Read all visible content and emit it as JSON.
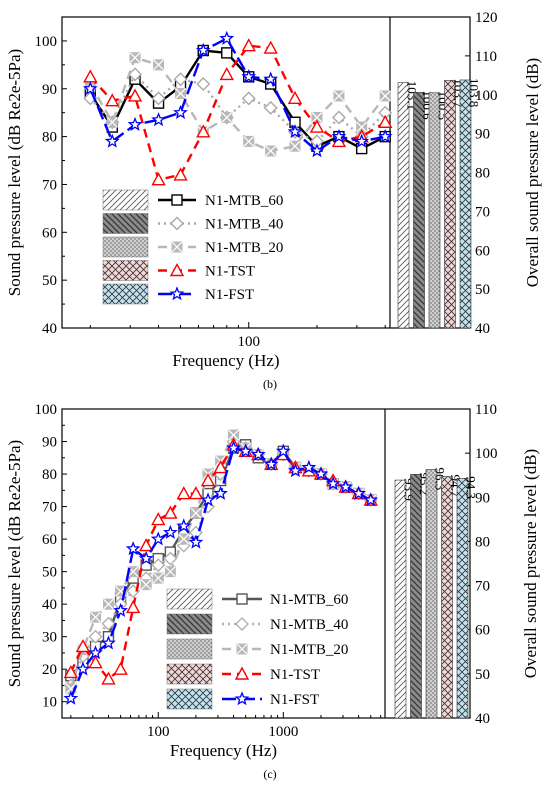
{
  "chart_data": [
    {
      "type": "line",
      "panel": "b",
      "caption": "(b)",
      "xlabel": "Frequency (Hz)",
      "ylabel": "Sound pressure level (dB Re2e-5Pa)",
      "y2label": "Overall sound pressure level (dB)",
      "xscale": "log",
      "xlim": [
        15,
        420
      ],
      "ylim": [
        40,
        105
      ],
      "y2lim": [
        40,
        120
      ],
      "x_ticks": [
        100
      ],
      "y_ticks": [
        40,
        50,
        60,
        70,
        80,
        90,
        100
      ],
      "y2_ticks": [
        40,
        50,
        60,
        70,
        80,
        90,
        100,
        110,
        120
      ],
      "x": [
        20,
        25,
        31.5,
        40,
        50,
        63,
        80,
        100,
        125,
        160,
        200,
        250,
        315,
        400
      ],
      "series": [
        {
          "name": "N1-MTB_60",
          "color": "#000000",
          "marker": "square",
          "dash": "",
          "values": [
            89,
            82,
            92,
            87,
            90.5,
            98,
            97.5,
            92.5,
            91,
            83,
            78,
            80,
            77.5,
            80
          ]
        },
        {
          "name": "N1-MTB_40",
          "color": "#a9a9a9",
          "marker": "diamond",
          "dash": "2 4",
          "values": [
            88,
            83,
            93,
            88,
            92,
            91,
            84,
            88,
            86,
            81,
            79,
            84,
            80,
            85
          ]
        },
        {
          "name": "N1-MTB_20",
          "color": "#b8b8b8",
          "marker": "xsquare",
          "dash": "9 6",
          "values": [
            91,
            83,
            96.5,
            95,
            89,
            81,
            84,
            79,
            77,
            78,
            84,
            88.5,
            82,
            88.5
          ]
        },
        {
          "name": "N1-TST",
          "color": "#ff0000",
          "marker": "triangle",
          "dash": "9 6",
          "values": [
            92.5,
            87.5,
            88.5,
            71,
            72,
            81,
            93,
            99,
            98.5,
            88,
            82,
            79,
            80,
            83
          ]
        },
        {
          "name": "N1-FST",
          "color": "#0000ff",
          "marker": "star",
          "dash": "14 5",
          "values": [
            90,
            79,
            82.5,
            83.5,
            85,
            98,
            100.5,
            92.5,
            92,
            81,
            77,
            80,
            79,
            80
          ]
        }
      ],
      "bars": {
        "labels": [
          "103.1",
          "100.6",
          "100.5",
          "103.7",
          "103.8"
        ],
        "values": [
          103.1,
          100.6,
          100.5,
          103.7,
          103.8
        ],
        "patterns": [
          "hatch-light",
          "hatch-dark",
          "dots",
          "cross-pink",
          "cross-blue"
        ]
      },
      "legend_labels": [
        "N1-MTB_60",
        "N1-MTB_40",
        "N1-MTB_20",
        "N1-TST",
        "N1-FST"
      ]
    },
    {
      "type": "line",
      "panel": "c",
      "caption": "(c)",
      "xlabel": "Frequency (Hz)",
      "ylabel": "Sound pressure level (dB Re2e-5Pa)",
      "y2label": "Overall sound pressure level (dB)",
      "xscale": "log",
      "xlim": [
        17,
        6500
      ],
      "ylim": [
        5,
        100
      ],
      "y2lim": [
        40,
        110
      ],
      "x_ticks": [
        100,
        1000
      ],
      "y_ticks": [
        10,
        20,
        30,
        40,
        50,
        60,
        70,
        80,
        90,
        100
      ],
      "y2_ticks": [
        40,
        50,
        60,
        70,
        80,
        90,
        100,
        110
      ],
      "x": [
        20,
        25,
        31.5,
        40,
        50,
        63,
        80,
        100,
        125,
        160,
        200,
        250,
        315,
        400,
        500,
        630,
        800,
        1000,
        1250,
        1600,
        2000,
        2500,
        3150,
        4000,
        5000
      ],
      "series": [
        {
          "name": "N1-MTB_60",
          "color": "#555555",
          "marker": "square",
          "dash": "",
          "values": [
            18,
            22,
            27,
            30,
            42,
            48,
            52,
            54,
            56,
            63,
            68,
            74,
            78,
            88,
            89,
            85,
            83,
            87,
            82,
            81,
            80,
            77,
            76,
            74,
            72
          ]
        },
        {
          "name": "N1-MTB_40",
          "color": "#b0b0b0",
          "marker": "diamond",
          "dash": "2 4",
          "values": [
            15,
            24,
            30,
            34,
            40,
            44,
            48,
            52,
            54,
            58,
            62,
            70,
            80,
            90,
            88,
            86,
            83,
            86,
            82,
            81,
            80,
            77,
            76,
            74,
            72
          ]
        },
        {
          "name": "N1-MTB_20",
          "color": "#b8b8b8",
          "marker": "xsquare",
          "dash": "9 6",
          "values": [
            14,
            26,
            36,
            40,
            44,
            50,
            46,
            48,
            50,
            60,
            68,
            80,
            84,
            92,
            88,
            86,
            83,
            86,
            82,
            81,
            80,
            77,
            76,
            74,
            72
          ]
        },
        {
          "name": "N1-TST",
          "color": "#ff0000",
          "marker": "triangle",
          "dash": "9 6",
          "values": [
            19,
            27,
            22,
            17,
            20,
            39,
            58,
            66,
            68,
            74,
            74,
            78,
            82,
            89,
            87,
            86,
            83,
            86,
            82,
            81,
            80,
            78,
            76,
            74,
            72
          ]
        },
        {
          "name": "N1-FST",
          "color": "#0000ff",
          "marker": "star",
          "dash": "14 5",
          "values": [
            11,
            20,
            25,
            28,
            38,
            57,
            54,
            60,
            62,
            64,
            59,
            72,
            74,
            88,
            87,
            86,
            83,
            87,
            81,
            82,
            80,
            77,
            76,
            74,
            72
          ]
        }
      ],
      "bars": {
        "labels": [
          "93.9",
          "95.2",
          "96.3",
          "94.7",
          "94.3"
        ],
        "values": [
          93.9,
          95.2,
          96.3,
          94.7,
          94.3
        ],
        "patterns": [
          "hatch-light",
          "hatch-dark",
          "dots",
          "cross-pink",
          "cross-blue"
        ]
      },
      "legend_labels": [
        "N1-MTB_60",
        "N1-MTB_40",
        "N1-MTB_20",
        "N1-TST",
        "N1-FST"
      ]
    }
  ]
}
